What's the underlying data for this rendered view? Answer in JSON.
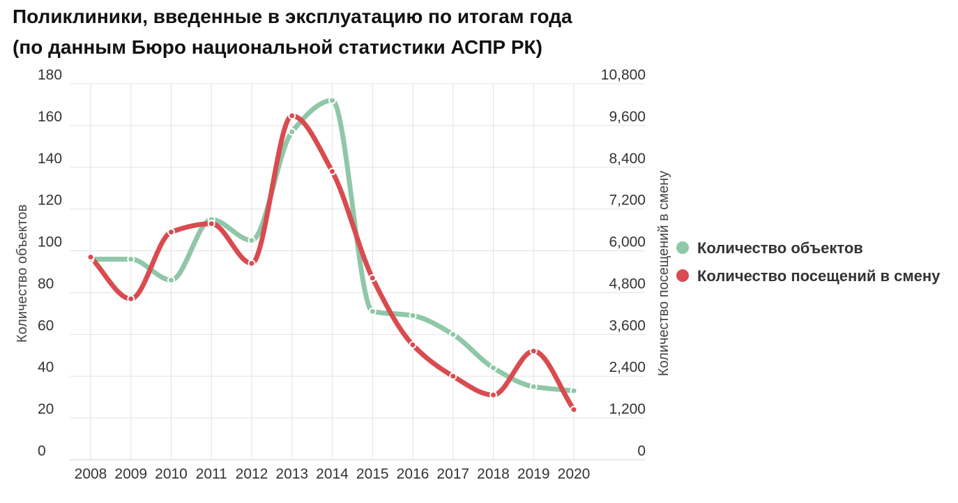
{
  "title_line1": "Поликлиники, введенные в эксплуатацию по итогам года",
  "title_line2": "(по данным Бюро национальной статистики АСПР РК)",
  "chart_data": {
    "type": "line",
    "categories": [
      "2008",
      "2009",
      "2010",
      "2011",
      "2012",
      "2013",
      "2014",
      "2015",
      "2016",
      "2017",
      "2018",
      "2019",
      "2020"
    ],
    "ylabel_left": "Количество объектов",
    "ylabel_right": "Количество посещений в смену",
    "ylim_left": [
      0,
      180
    ],
    "ylim_right": [
      0,
      10800
    ],
    "yticks_left": [
      "0",
      "20",
      "40",
      "60",
      "80",
      "100",
      "120",
      "140",
      "160",
      "180"
    ],
    "yticks_right": [
      "0",
      "1,200",
      "2,400",
      "3,600",
      "4,800",
      "6,000",
      "7,200",
      "8,400",
      "9,600",
      "10,800"
    ],
    "grid": true,
    "legend_position": "right",
    "series": [
      {
        "name": "Количество объектов",
        "axis": "left",
        "color": "#8fc7a8",
        "values": [
          96,
          96,
          86,
          115,
          105,
          157,
          172,
          71,
          69,
          60,
          44,
          35,
          33
        ]
      },
      {
        "name": "Количество посещений в смену",
        "axis": "right",
        "color": "#d94b4f",
        "values": [
          5820,
          4620,
          6540,
          6780,
          5640,
          9880,
          8280,
          5220,
          3300,
          2400,
          1860,
          3120,
          1440
        ]
      }
    ]
  }
}
